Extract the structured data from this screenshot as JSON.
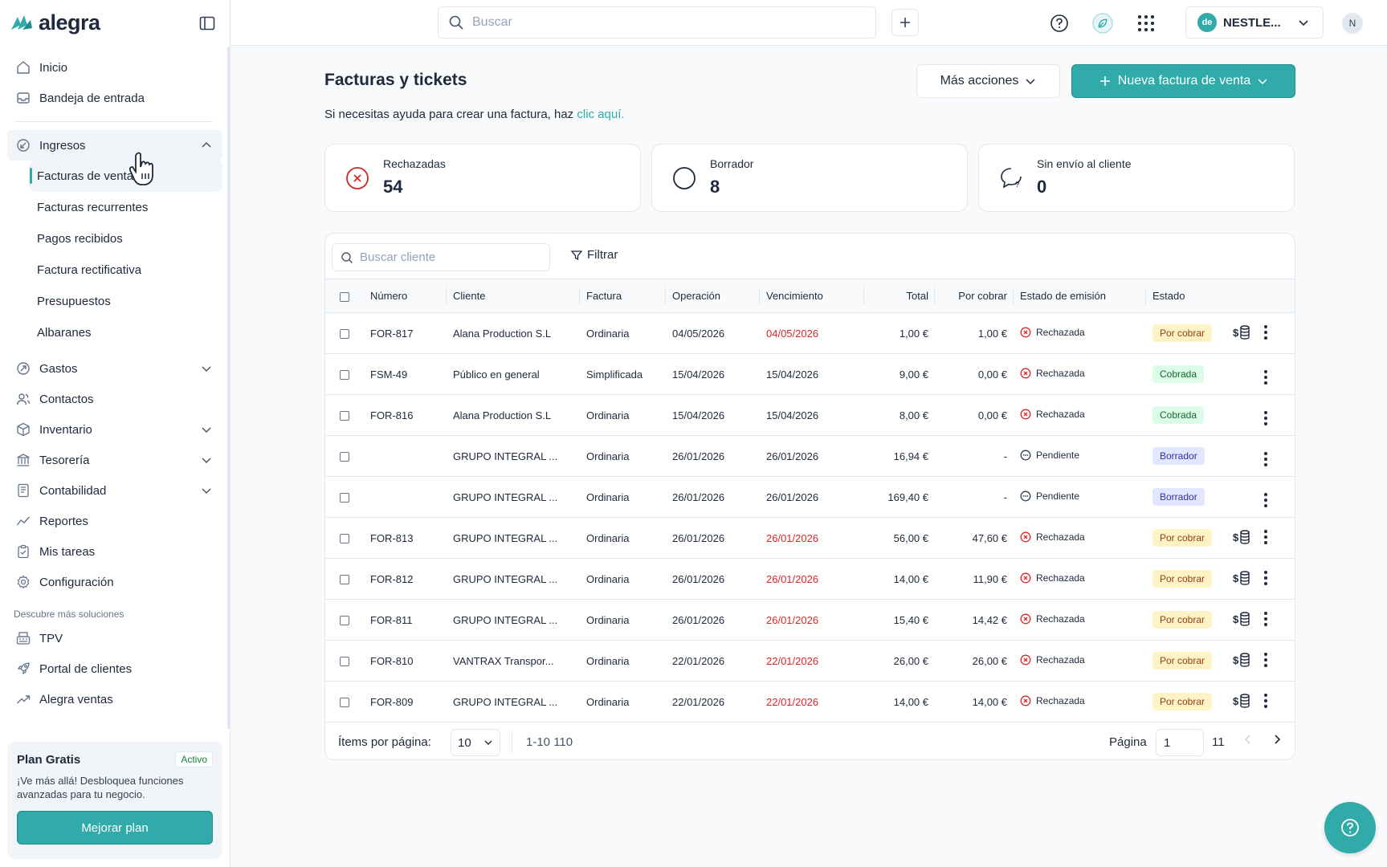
{
  "app": {
    "name": "alegra"
  },
  "colors": {
    "accent": "#30aba9",
    "danger": "#dc2626"
  },
  "topbar": {
    "search_placeholder": "Buscar",
    "company": "NESTLE...",
    "company_initials": "de",
    "avatar": "N"
  },
  "sidebar": {
    "items": [
      {
        "label": "Inicio",
        "icon": "home-icon"
      },
      {
        "label": "Bandeja de entrada",
        "icon": "inbox-icon"
      }
    ],
    "ingresos": {
      "label": "Ingresos",
      "sub": [
        "Facturas de venta",
        "Facturas recurrentes",
        "Pagos recibidos",
        "Factura rectificativa",
        "Presupuestos",
        "Albaranes"
      ]
    },
    "more": [
      {
        "label": "Gastos",
        "icon": "expenses-icon",
        "expand": true
      },
      {
        "label": "Contactos",
        "icon": "contacts-icon",
        "expand": false
      },
      {
        "label": "Inventario",
        "icon": "box-icon",
        "expand": true
      },
      {
        "label": "Tesorería",
        "icon": "bank-icon",
        "expand": true
      },
      {
        "label": "Contabilidad",
        "icon": "ledger-icon",
        "expand": true
      },
      {
        "label": "Reportes",
        "icon": "chart-line-icon",
        "expand": false
      },
      {
        "label": "Mis tareas",
        "icon": "clipboard-icon",
        "expand": false
      },
      {
        "label": "Configuración",
        "icon": "gear-icon",
        "expand": false
      }
    ],
    "section_label": "Descubre más soluciones",
    "solutions": [
      {
        "label": "TPV",
        "icon": "pos-icon"
      },
      {
        "label": "Portal de clientes",
        "icon": "rocket-icon"
      },
      {
        "label": "Alegra ventas",
        "icon": "trend-icon"
      }
    ],
    "plan": {
      "title": "Plan Gratis",
      "badge": "Activo",
      "text": "¡Ve más allá! Desbloquea funciones avanzadas para tu negocio.",
      "button": "Mejorar plan"
    }
  },
  "main": {
    "title": "Facturas y tickets",
    "help_prefix": "Si necesitas ayuda para crear una factura, haz ",
    "help_link": "clic aquí.",
    "more_actions": "Más acciones",
    "new_invoice": "Nueva factura de venta",
    "stats": [
      {
        "label": "Rechazadas",
        "value": "54"
      },
      {
        "label": "Borrador",
        "value": "8"
      },
      {
        "label": "Sin envío al cliente",
        "value": "0"
      }
    ],
    "client_search_placeholder": "Buscar cliente",
    "filter_label": "Filtrar",
    "columns": [
      "Número",
      "Cliente",
      "Factura",
      "Operación",
      "Vencimiento",
      "Total",
      "Por cobrar",
      "Estado de emisión",
      "Estado"
    ],
    "rows": [
      {
        "numero": "FOR-817",
        "cliente": "Alana Production S.L",
        "factura": "Ordinaria",
        "operacion": "04/05/2026",
        "vencimiento": "04/05/2026",
        "venc_red": true,
        "total": "1,00 €",
        "por_cobrar": "1,00 €",
        "emision": "Rechazada",
        "estado": "Por cobrar",
        "pay": true
      },
      {
        "numero": "FSM-49",
        "cliente": "Público en general",
        "factura": "Simplificada",
        "operacion": "15/04/2026",
        "vencimiento": "15/04/2026",
        "venc_red": false,
        "total": "9,00 €",
        "por_cobrar": "0,00 €",
        "emision": "Rechazada",
        "estado": "Cobrada",
        "pay": false
      },
      {
        "numero": "FOR-816",
        "cliente": "Alana Production S.L",
        "factura": "Ordinaria",
        "operacion": "15/04/2026",
        "vencimiento": "15/04/2026",
        "venc_red": false,
        "total": "8,00 €",
        "por_cobrar": "0,00 €",
        "emision": "Rechazada",
        "estado": "Cobrada",
        "pay": false
      },
      {
        "numero": "",
        "cliente": "GRUPO INTEGRAL ...",
        "factura": "Ordinaria",
        "operacion": "26/01/2026",
        "vencimiento": "26/01/2026",
        "venc_red": false,
        "total": "16,94 €",
        "por_cobrar": "-",
        "emision": "Pendiente",
        "estado": "Borrador",
        "pay": false
      },
      {
        "numero": "",
        "cliente": "GRUPO INTEGRAL ...",
        "factura": "Ordinaria",
        "operacion": "26/01/2026",
        "vencimiento": "26/01/2026",
        "venc_red": false,
        "total": "169,40 €",
        "por_cobrar": "-",
        "emision": "Pendiente",
        "estado": "Borrador",
        "pay": false
      },
      {
        "numero": "FOR-813",
        "cliente": "GRUPO INTEGRAL ...",
        "factura": "Ordinaria",
        "operacion": "26/01/2026",
        "vencimiento": "26/01/2026",
        "venc_red": true,
        "total": "56,00 €",
        "por_cobrar": "47,60 €",
        "emision": "Rechazada",
        "estado": "Por cobrar",
        "pay": true
      },
      {
        "numero": "FOR-812",
        "cliente": "GRUPO INTEGRAL ...",
        "factura": "Ordinaria",
        "operacion": "26/01/2026",
        "vencimiento": "26/01/2026",
        "venc_red": true,
        "total": "14,00 €",
        "por_cobrar": "11,90 €",
        "emision": "Rechazada",
        "estado": "Por cobrar",
        "pay": true
      },
      {
        "numero": "FOR-811",
        "cliente": "GRUPO INTEGRAL ...",
        "factura": "Ordinaria",
        "operacion": "26/01/2026",
        "vencimiento": "26/01/2026",
        "venc_red": true,
        "total": "15,40 €",
        "por_cobrar": "14,42 €",
        "emision": "Rechazada",
        "estado": "Por cobrar",
        "pay": true
      },
      {
        "numero": "FOR-810",
        "cliente": "VANTRAX Transpor...",
        "factura": "Ordinaria",
        "operacion": "22/01/2026",
        "vencimiento": "22/01/2026",
        "venc_red": true,
        "total": "26,00 €",
        "por_cobrar": "26,00 €",
        "emision": "Rechazada",
        "estado": "Por cobrar",
        "pay": true
      },
      {
        "numero": "FOR-809",
        "cliente": "GRUPO INTEGRAL ...",
        "factura": "Ordinaria",
        "operacion": "22/01/2026",
        "vencimiento": "22/01/2026",
        "venc_red": true,
        "total": "14,00 €",
        "por_cobrar": "14,00 €",
        "emision": "Rechazada",
        "estado": "Por cobrar",
        "pay": true
      }
    ],
    "pagination": {
      "per_page_label": "Ítems por página:",
      "per_page": "10",
      "range": "1-10 110",
      "page_label": "Página",
      "page": "1",
      "total_pages": "11"
    }
  }
}
